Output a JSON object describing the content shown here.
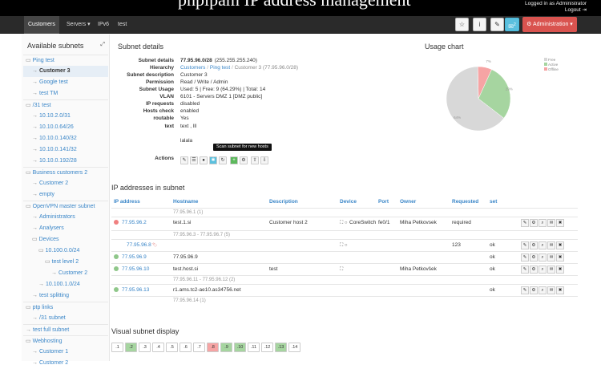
{
  "header": {
    "title": "phpipam IP address management",
    "login_line": "Logged in as Administrator",
    "logout": "Logout"
  },
  "navbar": {
    "items": [
      "Customers",
      "Servers",
      "IPv6",
      "test"
    ],
    "admin": "Administration",
    "icons": [
      "star-icon",
      "info-icon",
      "wrench-icon",
      "mail-icon"
    ],
    "mail_count": "2"
  },
  "sidebar": {
    "title": "Available subnets",
    "items": [
      {
        "label": "Ping test",
        "level": 0,
        "type": "folder"
      },
      {
        "label": "Customer 3",
        "level": 1,
        "type": "item",
        "selected": true
      },
      {
        "label": "Google test",
        "level": 1,
        "type": "item"
      },
      {
        "label": "test TM",
        "level": 1,
        "type": "item"
      },
      {
        "label": "/31 test",
        "level": 0,
        "type": "folder"
      },
      {
        "label": "10.10.2.0/31",
        "level": 1,
        "type": "item"
      },
      {
        "label": "10.10.0.64/26",
        "level": 1,
        "type": "item"
      },
      {
        "label": "10.10.0.140/32",
        "level": 1,
        "type": "item"
      },
      {
        "label": "10.10.0.141/32",
        "level": 1,
        "type": "item"
      },
      {
        "label": "10.10.0.192/28",
        "level": 1,
        "type": "item"
      },
      {
        "label": "Business customers 2",
        "level": 0,
        "type": "folder"
      },
      {
        "label": "Customer 2",
        "level": 1,
        "type": "item"
      },
      {
        "label": "empty",
        "level": 1,
        "type": "item"
      },
      {
        "label": "OpenVPN master subnet",
        "level": 0,
        "type": "folder"
      },
      {
        "label": "Administrators",
        "level": 1,
        "type": "item"
      },
      {
        "label": "Analysers",
        "level": 1,
        "type": "item"
      },
      {
        "label": "Devices",
        "level": 1,
        "type": "folder"
      },
      {
        "label": "10.100.0.0/24",
        "level": 2,
        "type": "folder"
      },
      {
        "label": "test level 2",
        "level": 3,
        "type": "folder"
      },
      {
        "label": "Customer 2",
        "level": 4,
        "type": "item"
      },
      {
        "label": "10.100.1.0/24",
        "level": 2,
        "type": "item"
      },
      {
        "label": "test splitting",
        "level": 1,
        "type": "item"
      },
      {
        "label": "ptp links",
        "level": 0,
        "type": "folder"
      },
      {
        "label": "/31 subnet",
        "level": 1,
        "type": "item"
      },
      {
        "label": "test full subnet",
        "level": 0,
        "type": "item"
      },
      {
        "label": "Webhosting",
        "level": 0,
        "type": "folder"
      },
      {
        "label": "Customer 1",
        "level": 1,
        "type": "item"
      },
      {
        "label": "Customer 2",
        "level": 1,
        "type": "item"
      }
    ]
  },
  "details": {
    "title": "Subnet details",
    "rows": [
      {
        "label": "Subnet details",
        "value": "77.95.96.0/28",
        "extra": "(255.255.255.240)"
      },
      {
        "label": "Hierarchy",
        "crumbs": [
          "Customers",
          "Ping test",
          "Customer 3 (77.95.96.0/28)"
        ]
      },
      {
        "label": "Subnet description",
        "value": "Customer 3"
      },
      {
        "label": "Permission",
        "value": "Read / Write / Admin"
      },
      {
        "label": "Subnet Usage",
        "value": "Used: 5 | Free: 9 (64.29%) | Total: 14"
      },
      {
        "label": "VLAN",
        "value": "6101 - Servers DMZ 1 [DMZ public]"
      },
      {
        "label": "IP requests",
        "value": "disabled"
      },
      {
        "label": "Hosts check",
        "value": "enabled"
      },
      {
        "label": "routable",
        "value": "Yes"
      },
      {
        "label": "text",
        "value": "text , lll"
      },
      {
        "label": "",
        "value": "lalala"
      },
      {
        "label": "Actions",
        "value": ""
      }
    ],
    "tooltip": "Scan subnet for new hosts"
  },
  "usage": {
    "title": "Usage chart",
    "legend": [
      "Free",
      "Active",
      "Offline"
    ],
    "labels": [
      "7%",
      "29%",
      "64%"
    ],
    "colors": [
      "#d8d8d8",
      "#a6d5a0",
      "#f6a4a4"
    ],
    "values": [
      64.29,
      28.57,
      7.14
    ]
  },
  "ip": {
    "title": "IP addresses in subnet",
    "headers": [
      "IP address",
      "Hostname",
      "Description",
      "Device",
      "Port",
      "Owner",
      "Requested",
      "set"
    ],
    "rows": [
      {
        "type": "free",
        "text": "77.95.96.1 (1)"
      },
      {
        "type": "ip",
        "status": "#f08080",
        "ip": "77.95.96.2",
        "host": "test.1.si",
        "desc": "Customer host 2",
        "device": "CoreSwitch",
        "port": "fe0/1",
        "owner": "Miha Petkovsek",
        "req": "required",
        "set": ""
      },
      {
        "type": "free",
        "text": "77.95.96.3 - 77.95.96.7 (5)"
      },
      {
        "type": "ip",
        "status": "",
        "ip": "77.95.96.8",
        "host": "",
        "desc": "",
        "device": "",
        "port": "",
        "owner": "",
        "req": "123",
        "set": "ok"
      },
      {
        "type": "ip",
        "status": "#8fc78a",
        "ip": "77.95.96.9",
        "host": "77.95.96.9",
        "desc": "",
        "device": "",
        "port": "",
        "owner": "",
        "req": "",
        "set": "ok"
      },
      {
        "type": "ip",
        "status": "#8fc78a",
        "ip": "77.95.96.10",
        "host": "test.host.si",
        "desc": "test",
        "device": "",
        "port": "",
        "owner": "Miha Petkovšek",
        "req": "",
        "set": "ok"
      },
      {
        "type": "free",
        "text": "77.95.96.11 - 77.95.96.12 (2)"
      },
      {
        "type": "ip",
        "status": "#8fc78a",
        "ip": "77.95.96.13",
        "host": "r1.ams.tc2-ae10.as34756.net",
        "desc": "",
        "device": "",
        "port": "",
        "owner": "",
        "req": "",
        "set": "ok"
      },
      {
        "type": "free",
        "text": "77.95.96.14 (1)"
      }
    ]
  },
  "visual": {
    "title": "Visual subnet display",
    "cells": [
      ".1",
      ".2",
      ".3",
      ".4",
      ".5",
      ".6",
      ".7",
      ".8",
      ".9",
      ".10",
      ".11",
      ".12",
      ".13",
      ".14"
    ],
    "states": [
      "free",
      "used",
      "free",
      "free",
      "free",
      "free",
      "free",
      "res",
      "used",
      "used",
      "free",
      "free",
      "used",
      "free"
    ]
  }
}
